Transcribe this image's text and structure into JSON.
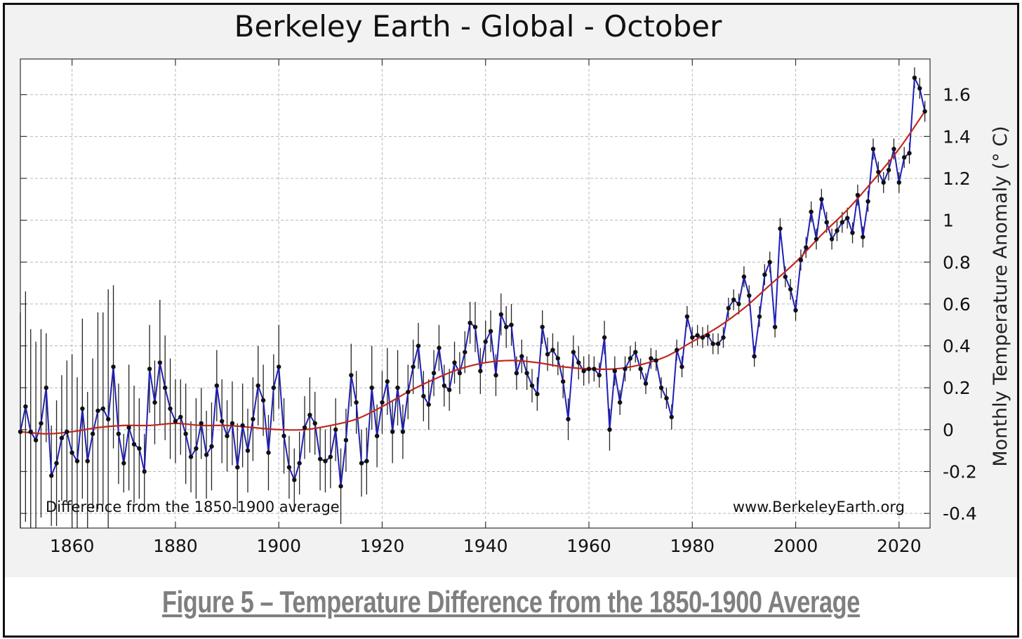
{
  "figure": {
    "caption": "Figure 5 – Temperature Difference from the 1850-1900 Average"
  },
  "colors": {
    "series": "#1f1fb8",
    "trend": "#c0281e",
    "marker": "#111111",
    "error_bar": "#222222",
    "grid": "#b8b8b8"
  },
  "chart_data": {
    "type": "line",
    "title": "Berkeley Earth - Global - October",
    "xlabel": "",
    "ylabel": "Monthly Temperature Anomaly (° C)",
    "annotation_left": "Difference from the 1850-1900 average",
    "annotation_right": "www.BerkeleyEarth.org",
    "xlim": [
      1850,
      2026
    ],
    "ylim": [
      -0.47,
      1.77
    ],
    "xticks": [
      1860,
      1880,
      1900,
      1920,
      1940,
      1960,
      1980,
      2000,
      2020
    ],
    "yticks": [
      -0.4,
      -0.2,
      0,
      0.2,
      0.4,
      0.6,
      0.8,
      1,
      1.2,
      1.4,
      1.6
    ],
    "ytick_labels": [
      "-0.4",
      "-0.2",
      "0",
      "0.2",
      "0.4",
      "0.6",
      "0.8",
      "1",
      "1.2",
      "1.4",
      "1.6"
    ],
    "grid": true,
    "x_start": 1850,
    "series": [
      {
        "name": "October anomaly",
        "values": [
          -0.01,
          0.11,
          -0.01,
          -0.05,
          0.03,
          0.2,
          -0.22,
          -0.16,
          -0.04,
          -0.01,
          -0.11,
          -0.15,
          0.1,
          -0.15,
          -0.02,
          0.09,
          0.1,
          0.05,
          0.3,
          -0.02,
          -0.16,
          0.01,
          -0.07,
          -0.09,
          -0.2,
          0.29,
          0.13,
          0.32,
          0.2,
          0.1,
          0.04,
          0.06,
          -0.02,
          -0.13,
          -0.09,
          0.03,
          -0.12,
          -0.08,
          0.21,
          0.04,
          -0.03,
          0.03,
          -0.18,
          0.02,
          -0.1,
          0.05,
          0.21,
          0.14,
          -0.11,
          0.2,
          0.3,
          -0.03,
          -0.18,
          -0.24,
          -0.16,
          0.01,
          0.07,
          0.03,
          -0.14,
          -0.15,
          -0.13,
          0.0,
          -0.27,
          -0.05,
          0.26,
          0.13,
          -0.16,
          -0.15,
          0.2,
          -0.03,
          0.13,
          0.23,
          -0.01,
          0.2,
          -0.01,
          0.18,
          0.3,
          0.4,
          0.16,
          0.12,
          0.27,
          0.39,
          0.21,
          0.19,
          0.32,
          0.27,
          0.37,
          0.51,
          0.49,
          0.28,
          0.42,
          0.47,
          0.26,
          0.55,
          0.49,
          0.5,
          0.27,
          0.35,
          0.27,
          0.21,
          0.17,
          0.49,
          0.36,
          0.38,
          0.34,
          0.23,
          0.05,
          0.37,
          0.32,
          0.28,
          0.29,
          0.29,
          0.26,
          0.44,
          0.0,
          0.28,
          0.13,
          0.29,
          0.34,
          0.37,
          0.29,
          0.22,
          0.34,
          0.33,
          0.2,
          0.15,
          0.06,
          0.38,
          0.3,
          0.54,
          0.44,
          0.45,
          0.44,
          0.45,
          0.41,
          0.41,
          0.44,
          0.58,
          0.62,
          0.6,
          0.73,
          0.64,
          0.35,
          0.54,
          0.74,
          0.8,
          0.49,
          0.96,
          0.73,
          0.67,
          0.57,
          0.81,
          0.87,
          1.04,
          0.91,
          1.1,
          0.99,
          0.91,
          0.95,
          0.99,
          1.01,
          0.94,
          1.12,
          0.92,
          1.09,
          1.34,
          1.23,
          1.18,
          1.24,
          1.34,
          1.18,
          1.3,
          1.32,
          1.68,
          1.63,
          1.52
        ],
        "uncertainty": [
          0.57,
          0.55,
          0.49,
          0.47,
          0.45,
          0.26,
          0.24,
          0.3,
          0.3,
          0.34,
          0.47,
          0.4,
          0.43,
          0.33,
          0.36,
          0.47,
          0.46,
          0.62,
          0.39,
          0.24,
          0.14,
          0.3,
          0.28,
          0.24,
          0.18,
          0.21,
          0.2,
          0.3,
          0.25,
          0.24,
          0.2,
          0.18,
          0.24,
          0.17,
          0.24,
          0.17,
          0.21,
          0.21,
          0.17,
          0.2,
          0.17,
          0.2,
          0.21,
          0.2,
          0.2,
          0.2,
          0.19,
          0.17,
          0.18,
          0.16,
          0.2,
          0.18,
          0.15,
          0.15,
          0.15,
          0.15,
          0.18,
          0.15,
          0.15,
          0.15,
          0.15,
          0.15,
          0.18,
          0.15,
          0.15,
          0.15,
          0.16,
          0.16,
          0.2,
          0.15,
          0.15,
          0.16,
          0.15,
          0.18,
          0.13,
          0.13,
          0.13,
          0.11,
          0.12,
          0.12,
          0.11,
          0.11,
          0.1,
          0.1,
          0.1,
          0.1,
          0.1,
          0.1,
          0.12,
          0.11,
          0.1,
          0.1,
          0.1,
          0.1,
          0.1,
          0.1,
          0.08,
          0.08,
          0.08,
          0.08,
          0.08,
          0.08,
          0.08,
          0.08,
          0.08,
          0.08,
          0.1,
          0.08,
          0.08,
          0.07,
          0.07,
          0.06,
          0.06,
          0.08,
          0.1,
          0.07,
          0.06,
          0.06,
          0.06,
          0.05,
          0.05,
          0.05,
          0.05,
          0.05,
          0.05,
          0.05,
          0.06,
          0.05,
          0.05,
          0.05,
          0.05,
          0.05,
          0.05,
          0.05,
          0.05,
          0.05,
          0.05,
          0.05,
          0.05,
          0.05,
          0.05,
          0.05,
          0.05,
          0.05,
          0.05,
          0.05,
          0.05,
          0.05,
          0.05,
          0.05,
          0.05,
          0.05,
          0.05,
          0.05,
          0.05,
          0.05,
          0.05,
          0.05,
          0.05,
          0.05,
          0.05,
          0.05,
          0.05,
          0.05,
          0.05,
          0.05,
          0.05,
          0.05,
          0.05,
          0.05,
          0.05,
          0.05,
          0.05,
          0.05,
          0.05,
          0.05,
          0.05,
          0.05,
          0.05,
          0.05,
          0.05,
          0.04
        ]
      },
      {
        "name": "Smoothed trend",
        "x": [
          1850,
          1855,
          1860,
          1865,
          1870,
          1875,
          1880,
          1885,
          1890,
          1895,
          1900,
          1905,
          1910,
          1915,
          1920,
          1925,
          1930,
          1935,
          1940,
          1945,
          1950,
          1955,
          1960,
          1965,
          1970,
          1975,
          1980,
          1985,
          1990,
          1995,
          2000,
          2005,
          2010,
          2015,
          2020,
          2025
        ],
        "values": [
          -0.01,
          -0.02,
          -0.01,
          0.01,
          0.02,
          0.02,
          0.03,
          0.02,
          0.02,
          0.01,
          0.0,
          0.0,
          0.02,
          0.05,
          0.11,
          0.18,
          0.24,
          0.29,
          0.32,
          0.33,
          0.32,
          0.3,
          0.29,
          0.29,
          0.31,
          0.35,
          0.42,
          0.49,
          0.58,
          0.69,
          0.8,
          0.93,
          1.05,
          1.19,
          1.34,
          1.52
        ]
      }
    ]
  }
}
